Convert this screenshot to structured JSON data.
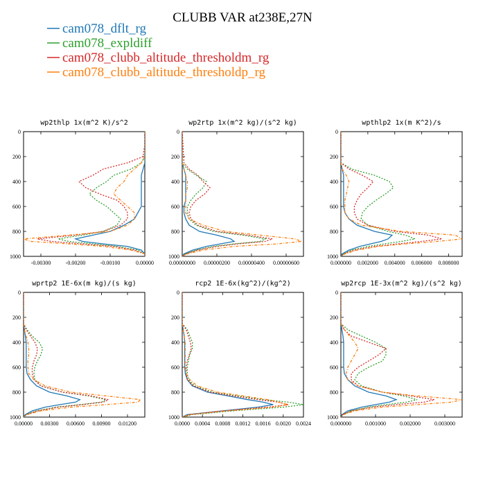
{
  "title": "CLUBB VAR at238E,27N",
  "legend": [
    {
      "label": "cam078_dflt_rg",
      "color": "#1f77b4"
    },
    {
      "label": "cam078_expldiff",
      "color": "#2ca02c"
    },
    {
      "label": "cam078_clubb_altitude_thresholdm_rg",
      "color": "#d62728"
    },
    {
      "label": "cam078_clubb_altitude_thresholdp_rg",
      "color": "#ff7f0e"
    }
  ],
  "chart_data": [
    {
      "type": "line",
      "title": "wp2thlp  1x(m^2 K)/s^2",
      "xlim": [
        -0.0035,
        0.0
      ],
      "ylim": [
        1000,
        0
      ],
      "xticks": [
        -0.003,
        -0.002,
        -0.001,
        0.0
      ],
      "xtick_labels": [
        "-0.00300",
        "-0.00200",
        "-0.00100",
        "0.00000"
      ],
      "yticks": [
        0,
        200,
        400,
        600,
        800,
        1000
      ],
      "ytick_labels": [
        "0",
        "200",
        "400",
        "600",
        "800",
        "1000"
      ],
      "levels": [
        0,
        100,
        200,
        250,
        300,
        350,
        400,
        450,
        500,
        550,
        600,
        650,
        700,
        750,
        800,
        830,
        860,
        880,
        900,
        920,
        950,
        980,
        1000
      ],
      "series": [
        {
          "name": "cam078_dflt_rg",
          "values": [
            0,
            0,
            0,
            0,
            -5e-05,
            -0.0001,
            -0.0001,
            -0.0001,
            -0.0001,
            -0.0001,
            -0.0001,
            -0.0002,
            -0.0003,
            -0.0006,
            -0.001,
            -0.0015,
            -0.002,
            -0.0018,
            -0.0012,
            -0.0005,
            -0.0001,
            0,
            0
          ]
        },
        {
          "name": "cam078_expldiff",
          "values": [
            0,
            0,
            0,
            -0.0001,
            -0.0004,
            -0.0009,
            -0.0011,
            -0.0014,
            -0.0016,
            -0.0014,
            -0.0011,
            -0.0009,
            -0.0007,
            -0.0008,
            -0.0012,
            -0.0018,
            -0.0025,
            -0.0022,
            -0.0015,
            -0.0008,
            -0.0002,
            0,
            0
          ]
        },
        {
          "name": "cam078_clubb_altitude_thresholdm_rg",
          "values": [
            0,
            0,
            -5e-05,
            -0.0005,
            -0.0012,
            -0.0015,
            -0.0019,
            -0.0017,
            -0.0013,
            -0.0008,
            -0.0006,
            -0.0005,
            -0.0005,
            -0.0007,
            -0.0012,
            -0.002,
            -0.0031,
            -0.0027,
            -0.0018,
            -0.0009,
            -0.0003,
            0,
            0
          ]
        },
        {
          "name": "cam078_clubb_altitude_thresholdp_rg",
          "values": [
            0,
            0,
            0,
            -0.0001,
            -0.0003,
            -0.0005,
            -0.0006,
            -0.0008,
            -0.0009,
            -0.0007,
            -0.0005,
            -0.0003,
            -0.0003,
            -0.0005,
            -0.001,
            -0.0022,
            -0.0035,
            -0.0033,
            -0.0022,
            -0.0012,
            -0.0004,
            0,
            0
          ]
        }
      ]
    },
    {
      "type": "line",
      "title": "wp2rtp  1x(m^2 kg)/(s^2 kg)",
      "xlim": [
        0,
        7e-06
      ],
      "ylim": [
        1000,
        0
      ],
      "xticks": [
        0,
        2e-06,
        4e-06,
        6e-06
      ],
      "xtick_labels": [
        "0.00000000",
        "0.00000200",
        "0.00000400",
        "0.00000600"
      ],
      "yticks": [
        0,
        200,
        400,
        600,
        800,
        1000
      ],
      "ytick_labels": [
        "0",
        "200",
        "400",
        "600",
        "800",
        "1000"
      ],
      "levels": [
        0,
        250,
        300,
        350,
        400,
        450,
        500,
        550,
        600,
        650,
        700,
        750,
        800,
        830,
        860,
        880,
        900,
        920,
        950,
        980,
        1000
      ],
      "series": [
        {
          "name": "cam078_dflt_rg",
          "values": [
            0,
            0,
            1e-07,
            2e-07,
            2e-07,
            2e-07,
            2e-07,
            2e-07,
            1e-07,
            1e-07,
            2e-07,
            4e-07,
            1e-06,
            2e-06,
            2.8e-06,
            3e-06,
            2.2e-06,
            1.4e-06,
            6e-07,
            1e-07,
            0
          ]
        },
        {
          "name": "cam078_expldiff",
          "values": [
            0,
            0,
            3e-07,
            8e-07,
            1.4e-06,
            1.2e-06,
            8e-07,
            5e-07,
            3e-07,
            3e-07,
            4e-07,
            8e-07,
            1.8e-06,
            3.5e-06,
            4.8e-06,
            4.5e-06,
            3e-06,
            1.8e-06,
            8e-07,
            2e-07,
            0
          ]
        },
        {
          "name": "cam078_clubb_altitude_thresholdm_rg",
          "values": [
            0,
            1e-07,
            4e-07,
            9e-07,
            1.2e-06,
            1.6e-06,
            1.3e-06,
            8e-07,
            5e-07,
            4e-07,
            5e-07,
            9e-07,
            2e-06,
            3.8e-06,
            5.2e-06,
            4.8e-06,
            3.2e-06,
            2e-06,
            9e-07,
            2e-07,
            0
          ]
        },
        {
          "name": "cam078_clubb_altitude_thresholdp_rg",
          "values": [
            0,
            0,
            1e-07,
            2e-07,
            3e-07,
            3e-07,
            2e-07,
            2e-07,
            2e-07,
            2e-07,
            4e-07,
            1.2e-06,
            2.5e-06,
            4.5e-06,
            6.5e-06,
            6.9e-06,
            5.5e-06,
            3e-06,
            1.2e-06,
            3e-07,
            0
          ]
        }
      ]
    },
    {
      "type": "line",
      "title": "wpthlp2  1x(m K^2)/s",
      "xlim": [
        0,
        0.009
      ],
      "ylim": [
        1000,
        0
      ],
      "xticks": [
        0,
        0.002,
        0.004,
        0.006,
        0.008
      ],
      "xtick_labels": [
        "0.000000",
        "0.002000",
        "0.004000",
        "0.006000",
        "0.008000"
      ],
      "yticks": [
        0,
        200,
        400,
        600,
        800,
        1000
      ],
      "ytick_labels": [
        "0",
        "200",
        "400",
        "600",
        "800",
        "1000"
      ],
      "levels": [
        0,
        250,
        300,
        350,
        400,
        450,
        500,
        550,
        600,
        650,
        700,
        750,
        800,
        830,
        860,
        880,
        900,
        920,
        950,
        980,
        1000
      ],
      "series": [
        {
          "name": "cam078_dflt_rg",
          "values": [
            0,
            0,
            0.0001,
            0.0002,
            0.0002,
            0.0002,
            0.0002,
            0.0002,
            0.0002,
            0.0003,
            0.0006,
            0.0012,
            0.0025,
            0.0038,
            0.0035,
            0.003,
            0.0022,
            0.0014,
            0.0006,
            0.0001,
            0
          ]
        },
        {
          "name": "cam078_expldiff",
          "values": [
            0,
            0,
            0.0008,
            0.0025,
            0.0036,
            0.0039,
            0.0033,
            0.0026,
            0.002,
            0.0016,
            0.0015,
            0.002,
            0.0035,
            0.0048,
            0.0055,
            0.0045,
            0.0032,
            0.002,
            0.0008,
            0.0002,
            0
          ]
        },
        {
          "name": "cam078_clubb_altitude_thresholdm_rg",
          "values": [
            0,
            0,
            0.0006,
            0.0016,
            0.0024,
            0.002,
            0.0015,
            0.0012,
            0.001,
            0.001,
            0.0012,
            0.002,
            0.004,
            0.0065,
            0.0075,
            0.006,
            0.0042,
            0.0025,
            0.001,
            0.0002,
            0
          ]
        },
        {
          "name": "cam078_clubb_altitude_thresholdp_rg",
          "values": [
            0,
            0,
            0.0001,
            0.0004,
            0.0006,
            0.0005,
            0.0004,
            0.0003,
            0.0003,
            0.0003,
            0.0006,
            0.0015,
            0.0045,
            0.0085,
            0.009,
            0.0072,
            0.0048,
            0.0028,
            0.0012,
            0.0003,
            0
          ]
        }
      ]
    },
    {
      "type": "line",
      "title": "wprtp2  1E-6x(m kg)/(s kg)",
      "xlim": [
        0,
        0.014
      ],
      "ylim": [
        1000,
        0
      ],
      "xticks": [
        0,
        0.003,
        0.006,
        0.009,
        0.012
      ],
      "xtick_labels": [
        "0.00000",
        "0.00300",
        "0.00600",
        "0.00900",
        "0.01200"
      ],
      "yticks": [
        0,
        200,
        400,
        600,
        800,
        1000
      ],
      "ytick_labels": [
        "0",
        "200",
        "400",
        "600",
        "800",
        "1000"
      ],
      "levels": [
        0,
        250,
        300,
        350,
        400,
        450,
        500,
        550,
        600,
        650,
        700,
        750,
        800,
        830,
        860,
        880,
        900,
        920,
        950,
        980,
        1000
      ],
      "series": [
        {
          "name": "cam078_dflt_rg",
          "values": [
            0,
            0,
            0.0001,
            0.0002,
            0.0003,
            0.0003,
            0.0003,
            0.0003,
            0.0003,
            0.0004,
            0.0008,
            0.0015,
            0.003,
            0.005,
            0.0065,
            0.006,
            0.0042,
            0.0025,
            0.001,
            0.0002,
            0
          ]
        },
        {
          "name": "cam078_expldiff",
          "values": [
            0,
            0,
            0.0004,
            0.001,
            0.0018,
            0.0022,
            0.002,
            0.0016,
            0.0013,
            0.0012,
            0.0013,
            0.002,
            0.0045,
            0.0075,
            0.0095,
            0.009,
            0.0065,
            0.0038,
            0.0015,
            0.0003,
            0
          ]
        },
        {
          "name": "cam078_clubb_altitude_thresholdm_rg",
          "values": [
            0,
            0,
            0.0003,
            0.0008,
            0.0013,
            0.0016,
            0.0015,
            0.0012,
            0.001,
            0.001,
            0.0012,
            0.002,
            0.0045,
            0.0078,
            0.0098,
            0.0092,
            0.0068,
            0.004,
            0.0016,
            0.0003,
            0
          ]
        },
        {
          "name": "cam078_clubb_altitude_thresholdp_rg",
          "values": [
            0,
            0,
            0.0001,
            0.0003,
            0.0005,
            0.0006,
            0.0006,
            0.0005,
            0.0005,
            0.0006,
            0.0012,
            0.0025,
            0.0055,
            0.0095,
            0.0135,
            0.0132,
            0.0095,
            0.0055,
            0.002,
            0.0004,
            0
          ]
        }
      ]
    },
    {
      "type": "line",
      "title": "rcp2  1E-6x(kg^2)/(kg^2)",
      "xlim": [
        0,
        0.0024
      ],
      "ylim": [
        1000,
        0
      ],
      "xticks": [
        0,
        0.0004,
        0.0008,
        0.0012,
        0.0016,
        0.002,
        0.0024
      ],
      "xtick_labels": [
        "0.0000",
        "0.0004",
        "0.0008",
        "0.0012",
        "0.0016",
        "0.0020",
        "0.0024"
      ],
      "yticks": [
        0,
        200,
        400,
        600,
        800,
        1000
      ],
      "ytick_labels": [
        "0",
        "200",
        "400",
        "600",
        "800",
        "1000"
      ],
      "levels": [
        0,
        250,
        300,
        350,
        400,
        450,
        500,
        550,
        600,
        650,
        700,
        750,
        800,
        830,
        860,
        880,
        900,
        920,
        950,
        980,
        1000
      ],
      "series": [
        {
          "name": "cam078_dflt_rg",
          "values": [
            0,
            0,
            2e-05,
            4e-05,
            5e-05,
            5e-05,
            5e-05,
            5e-05,
            5e-05,
            6e-05,
            0.0001,
            0.0002,
            0.0005,
            0.0009,
            0.0013,
            0.0016,
            0.0018,
            0.0015,
            0.0008,
            0.0001,
            0
          ]
        },
        {
          "name": "cam078_expldiff",
          "values": [
            0,
            0,
            0.0001,
            0.00015,
            0.0002,
            0.0002,
            0.00015,
            0.00012,
            0.0001,
            0.0001,
            0.00012,
            0.00025,
            0.0006,
            0.0011,
            0.0016,
            0.0021,
            0.0024,
            0.002,
            0.001,
            0.0002,
            0
          ]
        },
        {
          "name": "cam078_clubb_altitude_thresholdm_rg",
          "values": [
            0,
            0,
            8e-05,
            0.00012,
            0.00016,
            0.00018,
            0.00014,
            0.0001,
            8e-05,
            8e-05,
            0.0001,
            0.00022,
            0.00055,
            0.001,
            0.0015,
            0.0019,
            0.0021,
            0.0017,
            0.0008,
            0.00015,
            0
          ]
        },
        {
          "name": "cam078_clubb_altitude_thresholdp_rg",
          "values": [
            0,
            0,
            2e-05,
            4e-05,
            6e-05,
            6e-05,
            6e-05,
            6e-05,
            6e-05,
            8e-05,
            0.00015,
            0.0003,
            0.0007,
            0.0012,
            0.0017,
            0.0019,
            0.0021,
            0.0018,
            0.0009,
            0.00015,
            0
          ]
        }
      ]
    },
    {
      "type": "line",
      "title": "wp2rcp  1E-3x(m^2 kg)/(s^2 kg)",
      "xlim": [
        0,
        0.0035
      ],
      "ylim": [
        1000,
        0
      ],
      "xticks": [
        0,
        0.001,
        0.002,
        0.003
      ],
      "xtick_labels": [
        "0.000000",
        "0.001000",
        "0.002000",
        "0.003000"
      ],
      "yticks": [
        0,
        200,
        400,
        600,
        800,
        1000
      ],
      "ytick_labels": [
        "0",
        "200",
        "400",
        "600",
        "800",
        "1000"
      ],
      "levels": [
        0,
        250,
        300,
        350,
        400,
        450,
        500,
        550,
        600,
        650,
        700,
        750,
        800,
        830,
        860,
        880,
        900,
        920,
        950,
        980,
        1000
      ],
      "series": [
        {
          "name": "cam078_dflt_rg",
          "values": [
            0,
            0,
            3e-05,
            6e-05,
            8e-05,
            8e-05,
            8e-05,
            8e-05,
            8e-05,
            0.0001,
            0.0002,
            0.0004,
            0.0008,
            0.0013,
            0.0016,
            0.0014,
            0.001,
            0.0006,
            0.0002,
            3e-05,
            0
          ]
        },
        {
          "name": "cam078_expldiff",
          "values": [
            0,
            0,
            0.0002,
            0.0006,
            0.001,
            0.0013,
            0.0013,
            0.0012,
            0.0008,
            0.0005,
            0.0004,
            0.0006,
            0.0012,
            0.0018,
            0.0022,
            0.0019,
            0.0013,
            0.0008,
            0.0003,
            5e-05,
            0
          ]
        },
        {
          "name": "cam078_clubb_altitude_thresholdm_rg",
          "values": [
            0,
            0,
            0.0001,
            0.0003,
            0.0008,
            0.0013,
            0.0011,
            0.0008,
            0.0005,
            0.0003,
            0.0003,
            0.0005,
            0.0012,
            0.002,
            0.0027,
            0.0024,
            0.0016,
            0.0009,
            0.0003,
            5e-05,
            0
          ]
        },
        {
          "name": "cam078_clubb_altitude_thresholdp_rg",
          "values": [
            0,
            0,
            0.0001,
            0.00025,
            0.0004,
            0.0005,
            0.0004,
            0.0003,
            0.0002,
            0.00015,
            0.0002,
            0.0005,
            0.0012,
            0.0022,
            0.0035,
            0.0032,
            0.0022,
            0.0012,
            0.0004,
            8e-05,
            0
          ]
        }
      ]
    }
  ]
}
